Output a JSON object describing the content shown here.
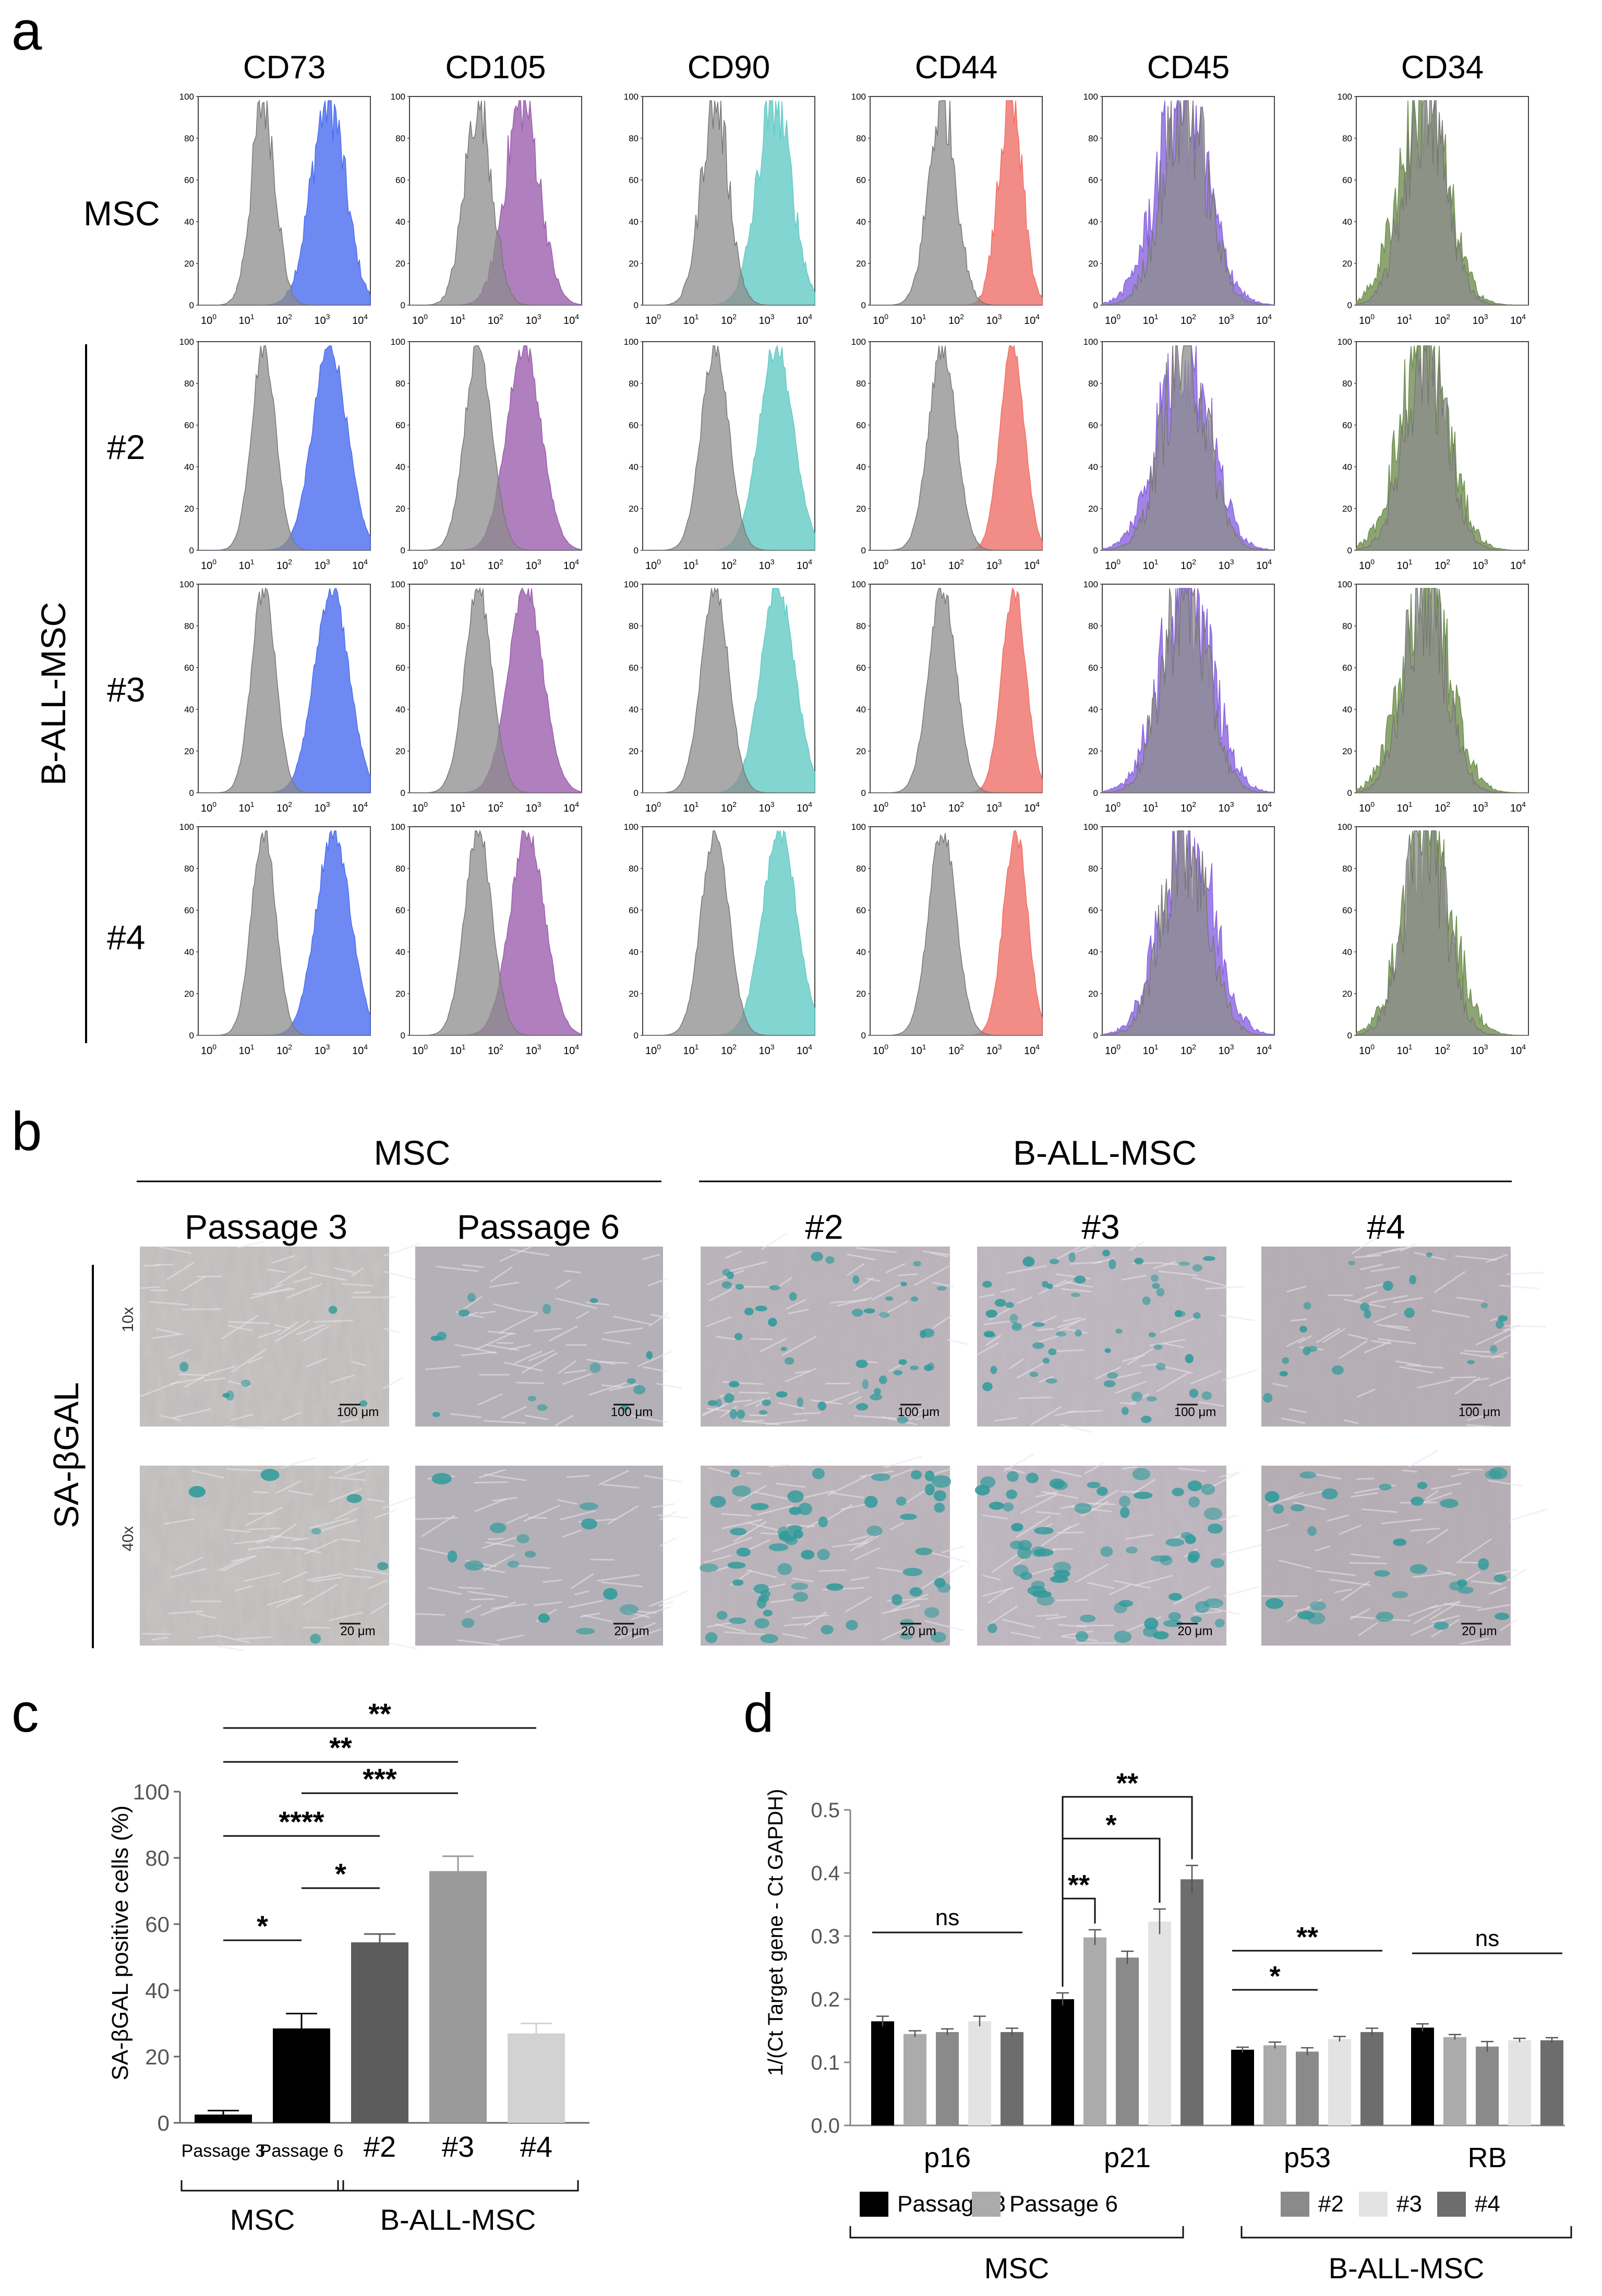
{
  "panel_labels": {
    "a": "a",
    "b": "b",
    "c": "c",
    "d": "d"
  },
  "panel_a": {
    "markers": [
      "CD73",
      "CD105",
      "CD90",
      "CD44",
      "CD45",
      "CD34"
    ],
    "rows": [
      "MSC",
      "#2",
      "#3",
      "#4"
    ],
    "group_label": "B-ALL-MSC",
    "y_ticks": [
      "0",
      "20",
      "40",
      "60",
      "80",
      "100"
    ],
    "x_ticks": [
      {
        "base": "10",
        "exp": "0"
      },
      {
        "base": "10",
        "exp": "1"
      },
      {
        "base": "10",
        "exp": "2"
      },
      {
        "base": "10",
        "exp": "3"
      },
      {
        "base": "10",
        "exp": "4"
      }
    ],
    "marker_colors": {
      "CD73": "#4b6cf0",
      "CD105": "#9b5fae",
      "CD90": "#63cbc6",
      "CD44": "#ef6f68",
      "CD45": "#8a63e0",
      "CD34": "#6f8f4f"
    },
    "control_color": "#8c8c8c"
  },
  "panel_b": {
    "group_msc": "MSC",
    "group_ball": "B-ALL-MSC",
    "columns": [
      "Passage 3",
      "Passage 6",
      "#2",
      "#3",
      "#4"
    ],
    "row_label": "SA-βGAL",
    "magnifications": [
      "10x",
      "40x"
    ],
    "scale_bars": [
      "100 μm",
      "20 μm"
    ]
  },
  "panel_c": {
    "chart_data": {
      "type": "bar",
      "ylabel": "SA-βGAL positive cells (%)",
      "ylim": [
        0,
        100
      ],
      "y_ticks": [
        0,
        20,
        40,
        60,
        80,
        100
      ],
      "categories": [
        "Passage 3",
        "Passage 6",
        "#2",
        "#3",
        "#4"
      ],
      "values": [
        2.5,
        28.5,
        54.5,
        76,
        27
      ],
      "errors": [
        1.2,
        4.5,
        2.5,
        4.5,
        3
      ],
      "colors": [
        "#000000",
        "#000000",
        "#5c5c5c",
        "#9a9a9a",
        "#d2d2d2"
      ],
      "groups": [
        {
          "label": "MSC",
          "span": [
            0,
            1
          ]
        },
        {
          "label": "B-ALL-MSC",
          "span": [
            2,
            4
          ]
        }
      ],
      "significance": [
        {
          "from": 1,
          "to": 0,
          "label": "*"
        },
        {
          "from": 2,
          "to": 1,
          "label": "*"
        },
        {
          "from": 2,
          "to": 0,
          "label": "****"
        },
        {
          "from": 3,
          "to": 1,
          "label": "***"
        },
        {
          "from": 3,
          "to": 0,
          "label": "**"
        },
        {
          "from": 4,
          "to": 0,
          "label": "**"
        }
      ]
    }
  },
  "panel_d": {
    "chart_data": {
      "type": "bar",
      "ylabel": "1/(Ct Target gene - Ct GAPDH)",
      "ylim": [
        0,
        0.5
      ],
      "y_ticks": [
        "0.0",
        "0.1",
        "0.2",
        "0.3",
        "0.4",
        "0.5"
      ],
      "categories": [
        "p16",
        "p21",
        "p53",
        "RB"
      ],
      "series": [
        {
          "name": "Passage 3",
          "color": "#000000",
          "values": [
            0.165,
            0.2,
            0.12,
            0.155
          ],
          "errors": [
            0.008,
            0.01,
            0.004,
            0.006
          ]
        },
        {
          "name": "Passage 6",
          "color": "#ababab",
          "values": [
            0.145,
            0.298,
            0.127,
            0.14
          ],
          "errors": [
            0.005,
            0.012,
            0.005,
            0.004
          ]
        },
        {
          "name": "#2",
          "color": "#8a8a8a",
          "values": [
            0.148,
            0.266,
            0.117,
            0.125
          ],
          "errors": [
            0.005,
            0.01,
            0.006,
            0.008
          ]
        },
        {
          "name": "#3",
          "color": "#e3e3e3",
          "values": [
            0.165,
            0.323,
            0.137,
            0.135
          ],
          "errors": [
            0.008,
            0.02,
            0.004,
            0.003
          ]
        },
        {
          "name": "#4",
          "color": "#6d6d6d",
          "values": [
            0.148,
            0.39,
            0.148,
            0.135
          ],
          "errors": [
            0.006,
            0.022,
            0.006,
            0.004
          ]
        }
      ],
      "significance": [
        {
          "category": 0,
          "from": 0,
          "to": 4,
          "label": "ns",
          "style": "line"
        },
        {
          "category": 1,
          "from": 0,
          "to": 1,
          "label": "**",
          "style": "bracket"
        },
        {
          "category": 1,
          "from": 0,
          "to": 3,
          "label": "*",
          "style": "bracket"
        },
        {
          "category": 1,
          "from": 0,
          "to": 4,
          "label": "**",
          "style": "bracket"
        },
        {
          "category": 2,
          "from": 0,
          "to": 2,
          "label": "*",
          "style": "line"
        },
        {
          "category": 2,
          "from": 0,
          "to": 4,
          "label": "**",
          "style": "line"
        },
        {
          "category": 3,
          "from": 0,
          "to": 4,
          "label": "ns",
          "style": "line"
        }
      ],
      "legend_groups": [
        {
          "label": "MSC",
          "items": [
            "Passage 3",
            "Passage 6"
          ]
        },
        {
          "label": "B-ALL-MSC",
          "items": [
            "#2",
            "#3",
            "#4"
          ]
        }
      ]
    }
  }
}
